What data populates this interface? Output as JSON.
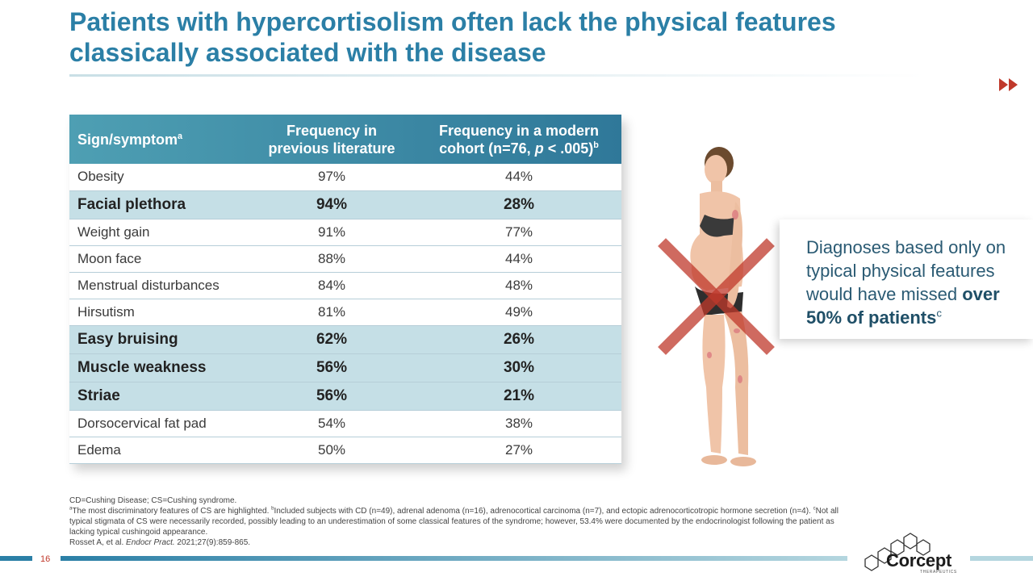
{
  "title": {
    "line1": "Patients with hypercortisolism often lack the physical features",
    "line2": "classically associated with the disease"
  },
  "table": {
    "headers": {
      "col1": "Sign/symptom",
      "col1_sup": "a",
      "col2_line1": "Frequency in",
      "col2_line2": "previous literature",
      "col3_line1": "Frequency in a modern",
      "col3_line2_pre": "cohort (n=76, ",
      "col3_line2_p": "p",
      "col3_line2_post": " < .005)",
      "col3_sup": "b"
    },
    "rows": [
      {
        "sign": "Obesity",
        "previous": "97%",
        "modern": "44%",
        "highlight": false
      },
      {
        "sign": "Facial plethora",
        "previous": "94%",
        "modern": "28%",
        "highlight": true
      },
      {
        "sign": "Weight gain",
        "previous": "91%",
        "modern": "77%",
        "highlight": false
      },
      {
        "sign": "Moon face",
        "previous": "88%",
        "modern": "44%",
        "highlight": false
      },
      {
        "sign": "Menstrual disturbances",
        "previous": "84%",
        "modern": "48%",
        "highlight": false
      },
      {
        "sign": "Hirsutism",
        "previous": "81%",
        "modern": "49%",
        "highlight": false
      },
      {
        "sign": "Easy bruising",
        "previous": "62%",
        "modern": "26%",
        "highlight": true
      },
      {
        "sign": "Muscle weakness",
        "previous": "56%",
        "modern": "30%",
        "highlight": true
      },
      {
        "sign": "Striae",
        "previous": "56%",
        "modern": "21%",
        "highlight": true
      },
      {
        "sign": "Dorsocervical fat pad",
        "previous": "54%",
        "modern": "38%",
        "highlight": false
      },
      {
        "sign": "Edema",
        "previous": "50%",
        "modern": "27%",
        "highlight": false
      }
    ]
  },
  "callout": {
    "text": "Diagnoses based only on typical physical features would have missed ",
    "bold": "over 50% of patients",
    "sup": "c"
  },
  "footnotes": {
    "abbrev": "CD=Cushing Disease; CS=Cushing syndrome.",
    "note_a_sup": "a",
    "note_a": "The most discriminatory features of CS are highlighted. ",
    "note_b_sup": "b",
    "note_b": "Included subjects with CD (n=49), adrenal adenoma (n=16), adrenocortical carcinoma (n=7), and ectopic adrenocorticotropic hormone secretion (n=4). ",
    "note_c_sup": "c",
    "note_c": "Not all typical stigmata of CS were necessarily recorded, possibly leading to an underestimation of some classical features of the syndrome; however, 53.4% were documented by the endocrinologist following the patient as lacking typical cushingoid appearance.",
    "ref_pre": "Rosset A, et al. ",
    "ref_journal": "Endocr Pract.",
    "ref_post": " 2021;27(9):859-865."
  },
  "footer": {
    "page_number": "16",
    "logo_text": "Corcept",
    "logo_sub": "THERAPEUTICS"
  },
  "colors": {
    "accent": "#2b7fa6",
    "header_bg": "#3d8aa6",
    "highlight_row": "#c5dfe6",
    "cross": "#c0392b"
  }
}
